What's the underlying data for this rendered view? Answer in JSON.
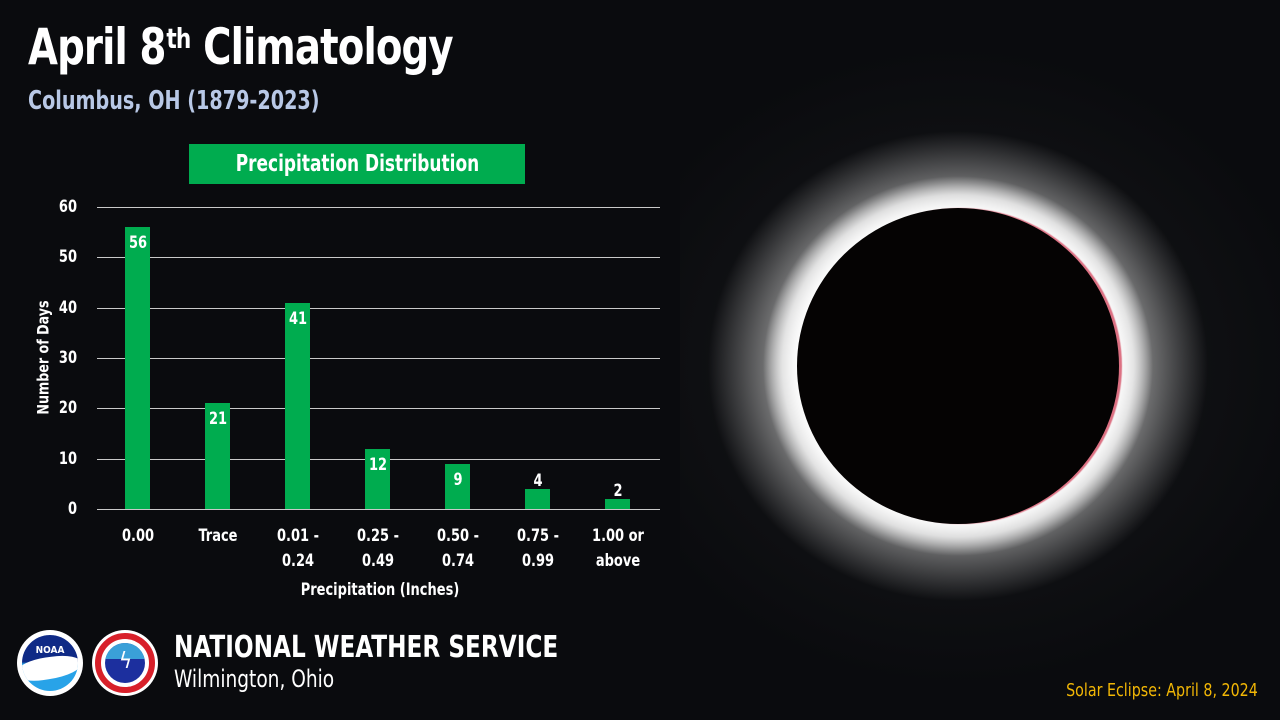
{
  "header": {
    "title_main": "April 8",
    "title_sup": "th",
    "title_rest": " Climatology",
    "subtitle": "Columbus, OH (1879-2023)"
  },
  "chart_data": {
    "type": "bar",
    "title": "Precipitation Distribution",
    "xlabel": "Precipitation (Inches)",
    "ylabel": "Number of Days",
    "categories": [
      "0.00",
      "Trace",
      "0.01 - 0.24",
      "0.25 - 0.49",
      "0.50 - 0.74",
      "0.75 - 0.99",
      "1.00 or above"
    ],
    "category_lines": [
      [
        "0.00"
      ],
      [
        "Trace"
      ],
      [
        "0.01 -",
        "0.24"
      ],
      [
        "0.25 -",
        "0.49"
      ],
      [
        "0.50 -",
        "0.74"
      ],
      [
        "0.75 -",
        "0.99"
      ],
      [
        "1.00 or",
        "above"
      ]
    ],
    "values": [
      56,
      21,
      41,
      12,
      9,
      4,
      2
    ],
    "ylim": [
      0,
      60
    ],
    "yticks": [
      0,
      10,
      20,
      30,
      40,
      50,
      60
    ],
    "grid": true,
    "bar_color": "#00ac4f",
    "data_labels": true
  },
  "footer": {
    "org_name": "NATIONAL WEATHER SERVICE",
    "office": "Wilmington, Ohio",
    "noaa_logo_text": "NOAA",
    "caption": "Solar Eclipse: April 8, 2024"
  },
  "colors": {
    "background": "#0a0b0e",
    "accent_green": "#00ac4f",
    "subtitle": "#b8c8e6",
    "caption": "#f2b705"
  },
  "images": {
    "eclipse": "total-solar-eclipse-photo"
  }
}
